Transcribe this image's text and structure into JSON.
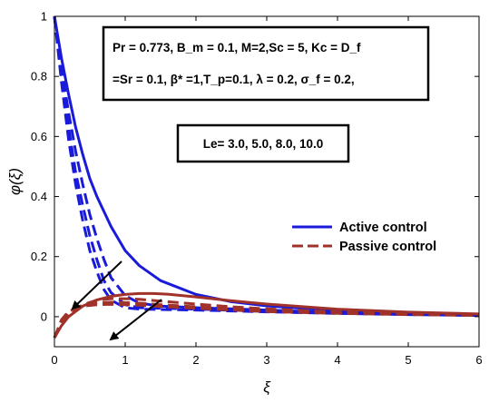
{
  "chart_data": {
    "type": "line",
    "xlabel": "ξ",
    "ylabel": "φ(ξ)",
    "xlim": [
      0,
      6
    ],
    "ylim": [
      -0.1,
      1
    ],
    "xticks": [
      0,
      1,
      2,
      3,
      4,
      5,
      6
    ],
    "yticks": [
      0,
      0.2,
      0.4,
      0.6,
      0.8,
      1
    ],
    "ytick_labels": [
      "0",
      "0.2",
      "0.4",
      "0.6",
      "0.8",
      "1"
    ],
    "grid": false,
    "legend_position": "right",
    "legend": [
      {
        "label": "Active control",
        "color": "#1a1adb"
      },
      {
        "label": "Passive control",
        "color": "#a0322a"
      }
    ],
    "annotation_params_line1": "Pr = 0.773, B_m = 0.1, M=2,Sc = 5, Kc = D_f",
    "annotation_params_line2": "=Sr = 0.1, β* =1,T_p=0.1, λ = 0.2, σ_f = 0.2,",
    "annotation_le": "Le= 3.0, 5.0, 8.0, 10.0",
    "series": [
      {
        "group": "Active control",
        "le": 3.0,
        "style": "solid",
        "color": "#1a1adb",
        "x": [
          0,
          0.1,
          0.2,
          0.3,
          0.4,
          0.5,
          0.6,
          0.8,
          1.0,
          1.2,
          1.5,
          2.0,
          2.5,
          3.0,
          4.0,
          5.0,
          6.0
        ],
        "y": [
          1.0,
          0.86,
          0.74,
          0.63,
          0.54,
          0.46,
          0.4,
          0.3,
          0.22,
          0.17,
          0.12,
          0.074,
          0.05,
          0.036,
          0.02,
          0.012,
          0.008
        ]
      },
      {
        "group": "Active control",
        "le": 5.0,
        "style": "dashed",
        "color": "#1a1adb",
        "x": [
          0,
          0.1,
          0.2,
          0.3,
          0.4,
          0.5,
          0.6,
          0.7,
          0.8,
          1.0,
          1.2,
          1.5,
          2.0,
          3.0,
          4.0,
          5.0,
          6.0
        ],
        "y": [
          1.0,
          0.83,
          0.68,
          0.55,
          0.44,
          0.34,
          0.26,
          0.19,
          0.13,
          0.07,
          0.045,
          0.035,
          0.03,
          0.022,
          0.014,
          0.009,
          0.006
        ]
      },
      {
        "group": "Active control",
        "le": 8.0,
        "style": "dashed",
        "color": "#1a1adb",
        "x": [
          0,
          0.1,
          0.2,
          0.3,
          0.4,
          0.5,
          0.6,
          0.7,
          0.8,
          1.0,
          1.2,
          1.5,
          2.0,
          3.0,
          4.0,
          5.0,
          6.0
        ],
        "y": [
          1.0,
          0.8,
          0.63,
          0.48,
          0.37,
          0.27,
          0.19,
          0.12,
          0.08,
          0.04,
          0.03,
          0.028,
          0.025,
          0.018,
          0.012,
          0.008,
          0.005
        ]
      },
      {
        "group": "Active control",
        "le": 10.0,
        "style": "dashed",
        "color": "#1a1adb",
        "x": [
          0,
          0.1,
          0.2,
          0.3,
          0.4,
          0.5,
          0.6,
          0.7,
          0.8,
          1.0,
          1.2,
          1.5,
          2.0,
          3.0,
          4.0,
          5.0,
          6.0
        ],
        "y": [
          1.0,
          0.78,
          0.59,
          0.44,
          0.32,
          0.22,
          0.15,
          0.09,
          0.055,
          0.03,
          0.025,
          0.024,
          0.022,
          0.016,
          0.011,
          0.007,
          0.004
        ]
      },
      {
        "group": "Passive control",
        "le": 3.0,
        "style": "solid",
        "color": "#a0322a",
        "x": [
          0,
          0.1,
          0.2,
          0.4,
          0.6,
          0.8,
          1.0,
          1.2,
          1.4,
          1.6,
          2.0,
          2.5,
          3.0,
          4.0,
          5.0,
          6.0
        ],
        "y": [
          -0.07,
          -0.03,
          0.0,
          0.035,
          0.056,
          0.068,
          0.074,
          0.077,
          0.077,
          0.075,
          0.066,
          0.053,
          0.042,
          0.025,
          0.015,
          0.009
        ]
      },
      {
        "group": "Passive control",
        "le": 5.0,
        "style": "dashed",
        "color": "#a0322a",
        "x": [
          0,
          0.1,
          0.2,
          0.4,
          0.6,
          0.8,
          1.0,
          1.2,
          1.5,
          2.0,
          2.5,
          3.0,
          4.0,
          5.0,
          6.0
        ],
        "y": [
          -0.07,
          -0.02,
          0.01,
          0.04,
          0.055,
          0.06,
          0.06,
          0.058,
          0.052,
          0.042,
          0.033,
          0.026,
          0.016,
          0.01,
          0.006
        ]
      },
      {
        "group": "Passive control",
        "le": 8.0,
        "style": "dashed",
        "color": "#a0322a",
        "x": [
          0,
          0.1,
          0.2,
          0.4,
          0.6,
          0.8,
          1.0,
          1.2,
          1.5,
          2.0,
          2.5,
          3.0,
          4.0,
          5.0,
          6.0
        ],
        "y": [
          -0.07,
          -0.015,
          0.015,
          0.038,
          0.046,
          0.048,
          0.047,
          0.045,
          0.04,
          0.033,
          0.026,
          0.02,
          0.013,
          0.008,
          0.005
        ]
      },
      {
        "group": "Passive control",
        "le": 10.0,
        "style": "dashed",
        "color": "#a0322a",
        "x": [
          0,
          0.1,
          0.2,
          0.4,
          0.6,
          0.8,
          1.0,
          1.2,
          1.5,
          2.0,
          2.5,
          3.0,
          4.0,
          5.0,
          6.0
        ],
        "y": [
          -0.07,
          -0.01,
          0.018,
          0.035,
          0.04,
          0.041,
          0.04,
          0.038,
          0.034,
          0.028,
          0.022,
          0.017,
          0.011,
          0.007,
          0.004
        ]
      }
    ]
  }
}
